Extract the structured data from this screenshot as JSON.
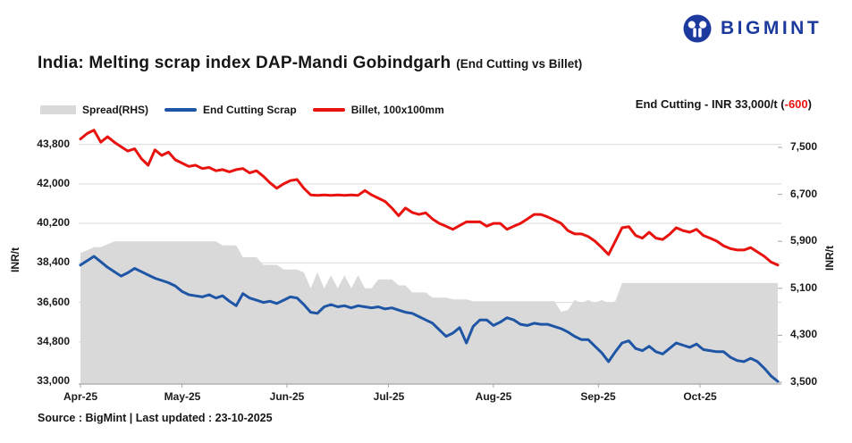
{
  "header": {
    "logo_text": "BIGMINT",
    "logo_color": "#1c3a9e"
  },
  "title": {
    "main": "India: Melting scrap index DAP-Mandi Gobindgarh",
    "suffix": "(End Cutting vs Billet)"
  },
  "legend": [
    {
      "label": "Spread(RHS)",
      "type": "area",
      "color": "#d9d9d9"
    },
    {
      "label": "End Cutting Scrap",
      "type": "line",
      "color": "#1f55a5"
    },
    {
      "label": "Billet, 100x100mm",
      "type": "line",
      "color": "#e8120e"
    }
  ],
  "annotation": {
    "prefix": "End Cutting - INR 33,000/t (",
    "delta": "-600",
    "suffix": ")",
    "delta_color": "#e8120e"
  },
  "footer": {
    "source": "Source : BigMint | Last updated : 23-10-2025"
  },
  "chart_data": {
    "type": "line",
    "title": "India: Melting scrap index DAP-Mandi Gobindgarh (End Cutting vs Billet)",
    "grid": "horizontal",
    "legend_position": "top-left",
    "x_axis": {
      "tick_labels": [
        "Apr-25",
        "May-25",
        "Jun-25",
        "Jul-25",
        "Aug-25",
        "Sep-25",
        "Oct-25"
      ],
      "tick_day_offsets": [
        0,
        30,
        61,
        91,
        122,
        153,
        183
      ],
      "start_day": 0,
      "day_step": 2,
      "num_points": 104
    },
    "left_axis": {
      "unit": "INR/t",
      "tick_labels": [
        "43,800",
        "42,000",
        "40,200",
        "38,400",
        "36,600",
        "34,800",
        "33,000"
      ],
      "tick_values": [
        43800,
        42000,
        40200,
        38400,
        36600,
        34800,
        33000
      ],
      "min": 33000,
      "max": 44800
    },
    "right_axis": {
      "unit": "INR/t",
      "tick_labels": [
        "7,500",
        "6,700",
        "5,900",
        "5,100",
        "4,300",
        "3,500"
      ],
      "tick_values": [
        7500,
        6700,
        5900,
        5100,
        4300,
        3500
      ],
      "min": 3500,
      "max": 7500
    },
    "series": [
      {
        "name": "Spread(RHS)",
        "type": "area",
        "axis": "right",
        "color": "#d9d9d9",
        "values": [
          5700,
          5750,
          5800,
          5800,
          5850,
          5900,
          5900,
          5900,
          5900,
          5900,
          5900,
          5900,
          5900,
          5900,
          5900,
          5900,
          5900,
          5900,
          5900,
          5900,
          5900,
          5830,
          5830,
          5830,
          5630,
          5630,
          5630,
          5500,
          5500,
          5500,
          5420,
          5420,
          5420,
          5370,
          5100,
          5370,
          5100,
          5320,
          5100,
          5320,
          5100,
          5320,
          5100,
          5100,
          5250,
          5250,
          5250,
          5150,
          5150,
          5030,
          5030,
          5030,
          4940,
          4940,
          4940,
          4910,
          4910,
          4910,
          4880,
          4880,
          4880,
          4880,
          4880,
          4880,
          4880,
          4880,
          4880,
          4880,
          4880,
          4880,
          4880,
          4700,
          4730,
          4900,
          4850,
          4900,
          4850,
          4900,
          4850,
          4880,
          5190,
          5190,
          5190,
          5190,
          5190,
          5190,
          5190,
          5190,
          5190,
          5190,
          5190,
          5190,
          5190,
          5190,
          5190,
          5190,
          5190,
          5190,
          5190,
          5190,
          5190,
          5190,
          5190,
          5190
        ]
      },
      {
        "name": "End Cutting Scrap",
        "type": "line",
        "axis": "left",
        "color": "#1f55a5",
        "values": [
          38300,
          38500,
          38700,
          38450,
          38200,
          38000,
          37800,
          37950,
          38150,
          38000,
          37850,
          37700,
          37600,
          37500,
          37350,
          37100,
          36950,
          36900,
          36850,
          36950,
          36800,
          36900,
          36650,
          36450,
          37000,
          36800,
          36700,
          36600,
          36650,
          36550,
          36700,
          36850,
          36800,
          36500,
          36150,
          36100,
          36400,
          36500,
          36400,
          36450,
          36350,
          36450,
          36400,
          36350,
          36400,
          36300,
          36350,
          36250,
          36150,
          36100,
          35950,
          35800,
          35650,
          35350,
          35050,
          35200,
          35450,
          34750,
          35500,
          35800,
          35800,
          35550,
          35700,
          35900,
          35800,
          35600,
          35550,
          35650,
          35600,
          35600,
          35500,
          35400,
          35250,
          35050,
          34900,
          34900,
          34600,
          34300,
          33900,
          34350,
          34750,
          34850,
          34500,
          34400,
          34600,
          34350,
          34250,
          34500,
          34750,
          34650,
          34550,
          34700,
          34450,
          34400,
          34350,
          34350,
          34100,
          33950,
          33900,
          34050,
          33900,
          33600,
          33250,
          33000
        ]
      },
      {
        "name": "Billet, 100x100mm",
        "type": "line",
        "axis": "left",
        "color": "#e8120e",
        "values": [
          44050,
          44300,
          44450,
          43900,
          44150,
          43900,
          43700,
          43500,
          43600,
          43150,
          42850,
          43550,
          43300,
          43450,
          43100,
          42950,
          42800,
          42850,
          42700,
          42750,
          42600,
          42650,
          42550,
          42650,
          42700,
          42500,
          42600,
          42350,
          42050,
          41800,
          42000,
          42150,
          42200,
          41800,
          41500,
          41480,
          41500,
          41480,
          41500,
          41480,
          41500,
          41480,
          41700,
          41500,
          41350,
          41200,
          40900,
          40550,
          40900,
          40700,
          40610,
          40680,
          40400,
          40200,
          40070,
          39930,
          40100,
          40270,
          40270,
          40270,
          40070,
          40200,
          40200,
          39930,
          40070,
          40200,
          40400,
          40610,
          40610,
          40500,
          40350,
          40200,
          39870,
          39720,
          39720,
          39600,
          39390,
          39100,
          38780,
          39390,
          40000,
          40050,
          39650,
          39530,
          39800,
          39530,
          39470,
          39700,
          40000,
          39870,
          39800,
          39930,
          39650,
          39530,
          39390,
          39180,
          39050,
          38990,
          38990,
          39100,
          38900,
          38700,
          38440,
          38300
        ]
      }
    ]
  }
}
